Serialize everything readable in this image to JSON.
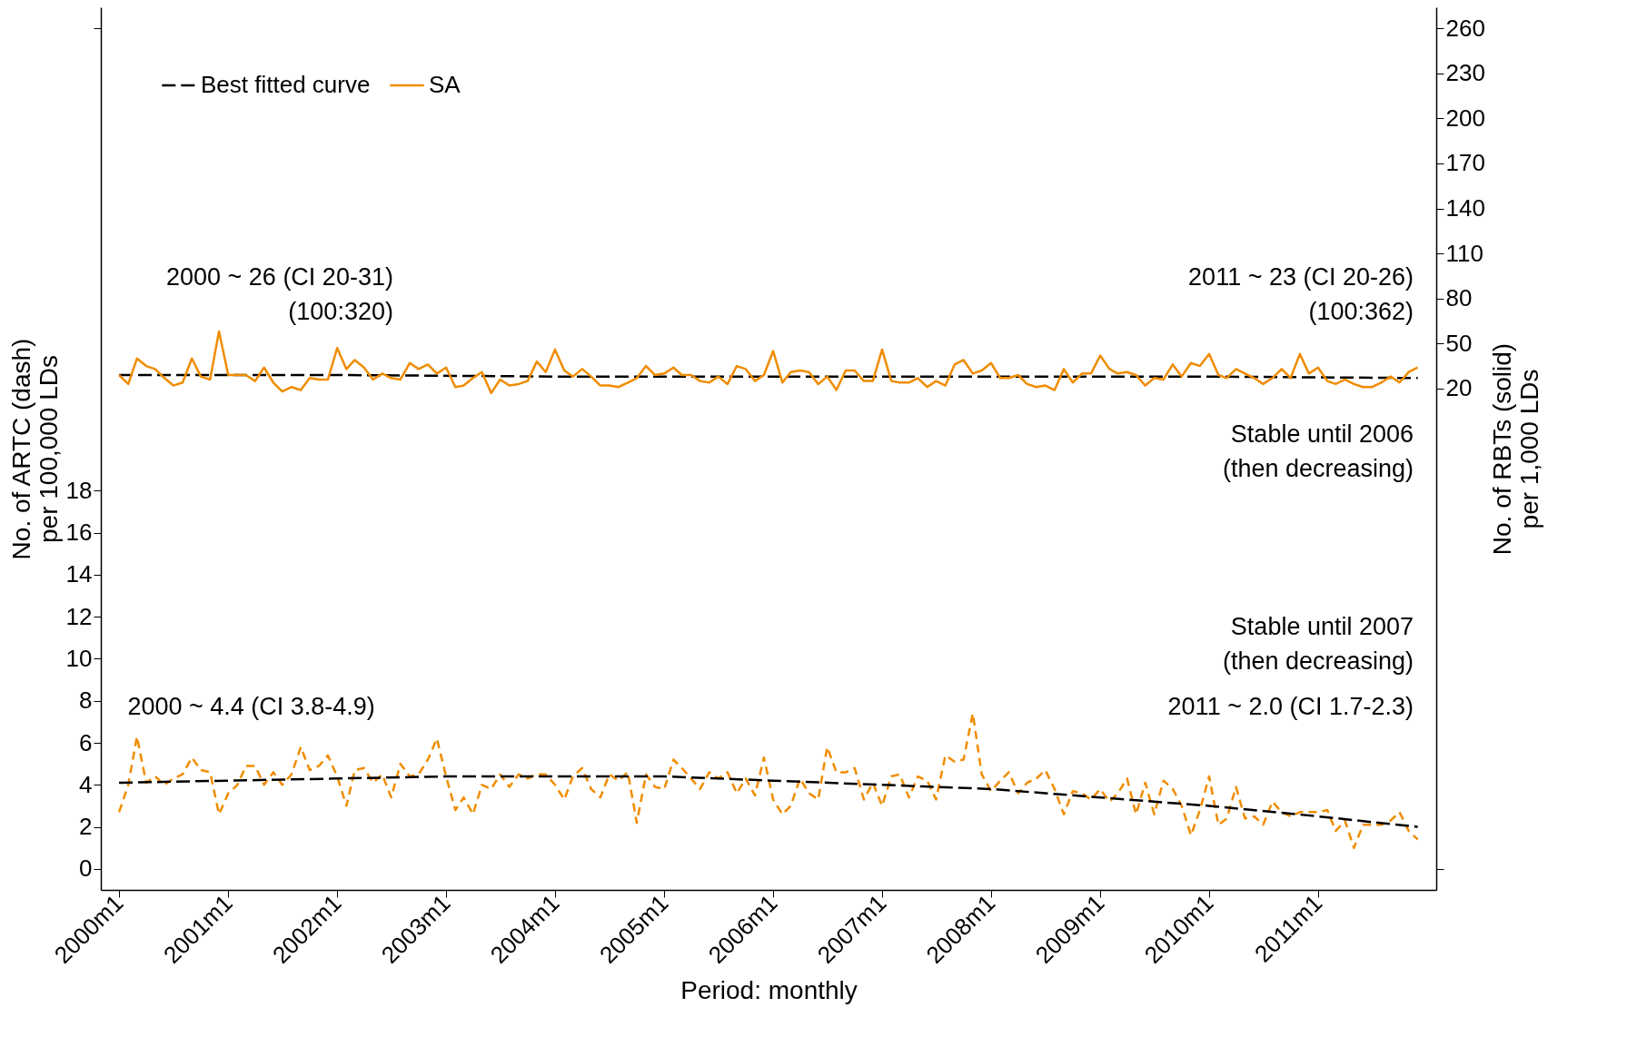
{
  "chart_data": {
    "type": "line",
    "xlabel": "Period: monthly",
    "ylabel": "No. of ARTC (dash)\nper 100,000 LDs",
    "y2label": "No. of RBTs (solid)\nper 1,000 LDs",
    "x": [
      "2000-01",
      "2000-02",
      "2000-03",
      "2000-04",
      "2000-05",
      "2000-06",
      "2000-07",
      "2000-08",
      "2000-09",
      "2000-10",
      "2000-11",
      "2000-12",
      "2001-01",
      "2001-02",
      "2001-03",
      "2001-04",
      "2001-05",
      "2001-06",
      "2001-07",
      "2001-08",
      "2001-09",
      "2001-10",
      "2001-11",
      "2001-12",
      "2002-01",
      "2002-02",
      "2002-03",
      "2002-04",
      "2002-05",
      "2002-06",
      "2002-07",
      "2002-08",
      "2002-09",
      "2002-10",
      "2002-11",
      "2002-12",
      "2003-01",
      "2003-02",
      "2003-03",
      "2003-04",
      "2003-05",
      "2003-06",
      "2003-07",
      "2003-08",
      "2003-09",
      "2003-10",
      "2003-11",
      "2003-12",
      "2004-01",
      "2004-02",
      "2004-03",
      "2004-04",
      "2004-05",
      "2004-06",
      "2004-07",
      "2004-08",
      "2004-09",
      "2004-10",
      "2004-11",
      "2004-12",
      "2005-01",
      "2005-02",
      "2005-03",
      "2005-04",
      "2005-05",
      "2005-06",
      "2005-07",
      "2005-08",
      "2005-09",
      "2005-10",
      "2005-11",
      "2005-12",
      "2006-01",
      "2006-02",
      "2006-03",
      "2006-04",
      "2006-05",
      "2006-06",
      "2006-07",
      "2006-08",
      "2006-09",
      "2006-10",
      "2006-11",
      "2006-12",
      "2007-01",
      "2007-02",
      "2007-03",
      "2007-04",
      "2007-05",
      "2007-06",
      "2007-07",
      "2007-08",
      "2007-09",
      "2007-10",
      "2007-11",
      "2007-12",
      "2008-01",
      "2008-02",
      "2008-03",
      "2008-04",
      "2008-05",
      "2008-06",
      "2008-07",
      "2008-08",
      "2008-09",
      "2008-10",
      "2008-11",
      "2008-12",
      "2009-01",
      "2009-02",
      "2009-03",
      "2009-04",
      "2009-05",
      "2009-06",
      "2009-07",
      "2009-08",
      "2009-09",
      "2009-10",
      "2009-11",
      "2009-12",
      "2010-01",
      "2010-02",
      "2010-03",
      "2010-04",
      "2010-05",
      "2010-06",
      "2010-07",
      "2010-08",
      "2010-09",
      "2010-10",
      "2010-11",
      "2010-12",
      "2011-01",
      "2011-02",
      "2011-03",
      "2011-04",
      "2011-05",
      "2011-06",
      "2011-07",
      "2011-08",
      "2011-09",
      "2011-10",
      "2011-11",
      "2011-12"
    ],
    "series": [
      {
        "name": "SA",
        "color": "#f08c00",
        "line_style": "solid",
        "axis": "y2",
        "values": [
          29,
          23,
          40,
          35,
          33,
          27,
          22,
          24,
          40,
          28,
          26,
          58,
          29,
          29,
          29,
          25,
          34,
          24,
          18,
          21,
          19,
          27,
          26,
          26,
          47,
          33,
          39,
          34,
          26,
          30,
          27,
          26,
          37,
          33,
          36,
          30,
          34,
          21,
          22,
          27,
          31,
          17,
          26,
          22,
          23,
          25,
          38,
          31,
          46,
          32,
          28,
          33,
          28,
          22,
          22,
          21,
          24,
          27,
          35,
          29,
          30,
          34,
          29,
          29,
          25,
          24,
          28,
          23,
          35,
          33,
          25,
          29,
          45,
          24,
          31,
          32,
          31,
          23,
          28,
          19,
          32,
          32,
          25,
          25,
          46,
          25,
          24,
          24,
          27,
          21,
          25,
          22,
          36,
          39,
          30,
          32,
          37,
          27,
          27,
          29,
          23,
          21,
          22,
          19,
          33,
          24,
          30,
          30,
          42,
          33,
          30,
          31,
          29,
          22,
          27,
          26,
          36,
          28,
          37,
          35,
          43,
          29,
          27,
          33,
          30,
          27,
          23,
          27,
          33,
          27,
          43,
          30,
          34,
          25,
          23,
          26,
          23,
          21,
          21,
          24,
          28,
          24,
          31,
          34
        ]
      },
      {
        "name": "Best fitted curve",
        "color": "#000000",
        "line_style": "dashed",
        "axis": "y2",
        "x": [
          "2000-01",
          "2002-01",
          "2004-01",
          "2006-01",
          "2008-01",
          "2010-01",
          "2011-12"
        ],
        "values": [
          29,
          29,
          28,
          28,
          28,
          28,
          27
        ]
      },
      {
        "color": "#f08c00",
        "line_style": "dashed",
        "values": [
          2.7,
          4.0,
          6.3,
          4.1,
          4.4,
          4.0,
          4.3,
          4.5,
          5.3,
          4.7,
          4.6,
          2.6,
          3.6,
          4.0,
          4.9,
          4.9,
          4.0,
          4.6,
          4.0,
          4.5,
          5.8,
          4.7,
          4.9,
          5.4,
          4.4,
          3.0,
          4.7,
          4.8,
          4.1,
          4.5,
          3.4,
          5.0,
          4.4,
          4.5,
          5.2,
          6.2,
          4.4,
          2.8,
          3.4,
          2.6,
          4.0,
          3.8,
          4.5,
          3.9,
          4.5,
          4.3,
          4.5,
          4.5,
          4.0,
          3.3,
          4.4,
          4.8,
          3.8,
          3.4,
          4.5,
          4.2,
          4.6,
          2.2,
          4.5,
          3.9,
          3.8,
          5.2,
          4.8,
          4.3,
          3.8,
          4.6,
          4.3,
          4.6,
          3.6,
          4.3,
          3.5,
          5.3,
          3.3,
          2.6,
          3.0,
          4.3,
          3.6,
          3.3,
          5.8,
          4.6,
          4.6,
          4.8,
          3.3,
          4.1,
          3.0,
          4.4,
          4.5,
          3.4,
          4.4,
          4.2,
          3.3,
          5.4,
          5.1,
          5.2,
          7.4,
          4.5,
          3.7,
          4.2,
          4.6,
          3.6,
          4.1,
          4.3,
          4.7,
          3.8,
          2.6,
          3.7,
          3.6,
          3.3,
          3.8,
          3.2,
          3.6,
          4.3,
          2.6,
          4.1,
          2.6,
          4.2,
          3.8,
          3.0,
          1.6,
          2.8,
          4.4,
          2.1,
          2.4,
          3.9,
          2.4,
          2.5,
          2.1,
          3.2,
          2.7,
          2.5,
          2.7,
          2.7,
          2.7,
          2.8,
          1.8,
          2.3,
          1.0,
          2.1,
          2.1,
          2.1,
          2.3,
          2.7,
          1.8,
          1.4
        ]
      },
      {
        "color": "#000000",
        "line_style": "dashed",
        "x": [
          "2000-01",
          "2001-01",
          "2002-01",
          "2003-01",
          "2004-01",
          "2005-01",
          "2006-01",
          "2007-01",
          "2008-01",
          "2009-01",
          "2010-01",
          "2011-01",
          "2011-12"
        ],
        "values": [
          4.1,
          4.2,
          4.3,
          4.4,
          4.4,
          4.4,
          4.2,
          4.0,
          3.8,
          3.4,
          3.0,
          2.5,
          2.0
        ]
      }
    ],
    "xlim": [
      "1999-11",
      "2012-02"
    ],
    "xticks": [
      {
        "value": "2000-01",
        "label": "2000m1"
      },
      {
        "value": "2001-01",
        "label": "2001m1"
      },
      {
        "value": "2002-01",
        "label": "2002m1"
      },
      {
        "value": "2003-01",
        "label": "2003m1"
      },
      {
        "value": "2004-01",
        "label": "2004m1"
      },
      {
        "value": "2005-01",
        "label": "2005m1"
      },
      {
        "value": "2006-01",
        "label": "2006m1"
      },
      {
        "value": "2007-01",
        "label": "2007m1"
      },
      {
        "value": "2008-01",
        "label": "2008m1"
      },
      {
        "value": "2009-01",
        "label": "2009m1"
      },
      {
        "value": "2010-01",
        "label": "2010m1"
      },
      {
        "value": "2011-01",
        "label": "2011m1"
      }
    ],
    "ylim": [
      -1,
      41
    ],
    "yticks": [
      0,
      2,
      4,
      6,
      8,
      10,
      12,
      14,
      16,
      18,
      {
        "value": 40,
        "label": null
      }
    ],
    "y2lim": [
      -314,
      274
    ],
    "y2ticks": [
      {
        "value": -300,
        "label": null
      },
      20,
      50,
      80,
      110,
      140,
      170,
      200,
      230,
      260
    ],
    "legend": "top left",
    "annotations": [
      "2000 ~ 26 (CI 20-31)\n(100:320)",
      "2011 ~ 23 (CI 20-26)\n(100:362)",
      "Stable until 2006\n(then decreasing)",
      "Stable until 2007\n(then decreasing)",
      "2000 ~ 4.4 (CI 3.8-4.9)",
      "2011 ~ 2.0 (CI 1.7-2.3)"
    ]
  }
}
